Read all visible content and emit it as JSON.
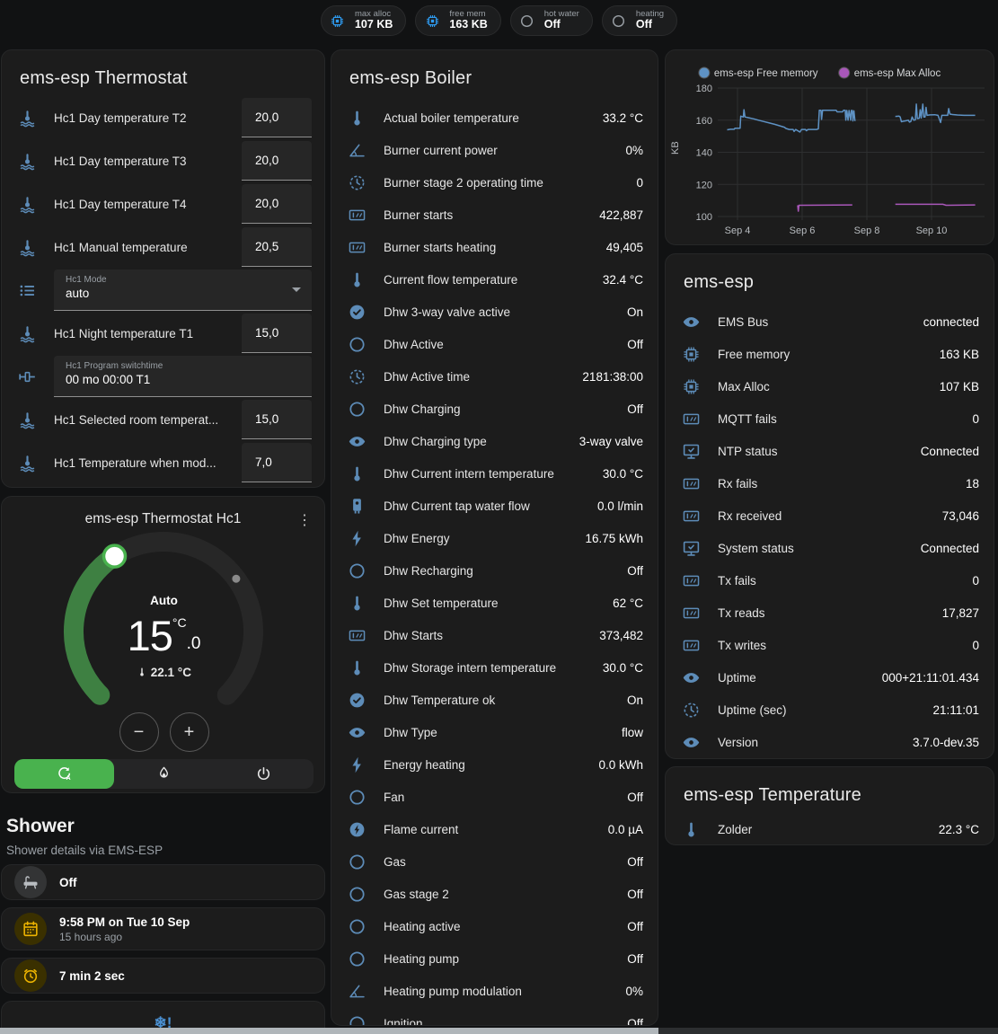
{
  "badges": [
    {
      "label": "max alloc",
      "value": "107 KB",
      "icon": "chip",
      "color": "blue"
    },
    {
      "label": "free mem",
      "value": "163 KB",
      "icon": "chip",
      "color": "blue"
    },
    {
      "label": "hot water",
      "value": "Off",
      "icon": "circle",
      "color": "gray"
    },
    {
      "label": "heating",
      "value": "Off",
      "icon": "circle",
      "color": "gray"
    }
  ],
  "thermostat_card": {
    "title": "ems-esp Thermostat",
    "rows": [
      {
        "type": "number",
        "icon": "thermometer-water",
        "label": "Hc1 Day temperature T2",
        "value": "20,0"
      },
      {
        "type": "number",
        "icon": "thermometer-water",
        "label": "Hc1 Day temperature T3",
        "value": "20,0"
      },
      {
        "type": "number",
        "icon": "thermometer-water",
        "label": "Hc1 Day temperature T4",
        "value": "20,0"
      },
      {
        "type": "number",
        "icon": "thermometer-water",
        "label": "Hc1 Manual temperature",
        "value": "20,5"
      },
      {
        "type": "select",
        "icon": "list",
        "label": "Hc1 Mode",
        "value": "auto"
      },
      {
        "type": "number",
        "icon": "thermometer-water",
        "label": "Hc1 Night temperature T1",
        "value": "15,0"
      },
      {
        "type": "text",
        "icon": "pipe",
        "label": "Hc1 Program switchtime",
        "value": "00 mo 00:00 T1"
      },
      {
        "type": "number",
        "icon": "thermometer-water",
        "label": "Hc1 Selected room temperat...",
        "value": "15,0"
      },
      {
        "type": "number",
        "icon": "thermometer-water",
        "label": "Hc1 Temperature when mod...",
        "value": "7,0"
      }
    ]
  },
  "dial_card": {
    "title": "ems-esp Thermostat Hc1",
    "mode": "Auto",
    "target_int": "15",
    "target_unit": "°C",
    "target_dec": ".0",
    "current": "22.1 °C"
  },
  "shower": {
    "title": "Shower",
    "subtitle": "Shower details via EMS-ESP",
    "cards": [
      {
        "icon": "bathtub",
        "color": "gray",
        "title": "Off",
        "subtitle": ""
      },
      {
        "icon": "calendar",
        "color": "yellow",
        "title": "9:58 PM on Tue 10 Sep",
        "subtitle": "15 hours ago"
      },
      {
        "icon": "timer",
        "color": "yellow",
        "title": "7 min 2 sec",
        "subtitle": ""
      },
      {
        "icon": "snowflake-alert",
        "color": "blue",
        "title": "",
        "subtitle": ""
      }
    ]
  },
  "boiler_card": {
    "title": "ems-esp Boiler",
    "rows": [
      {
        "icon": "thermometer",
        "label": "Actual boiler temperature",
        "value": "33.2 °C"
      },
      {
        "icon": "angle",
        "label": "Burner current power",
        "value": "0%"
      },
      {
        "icon": "clock",
        "label": "Burner stage 2 operating time",
        "value": "0"
      },
      {
        "icon": "counter",
        "label": "Burner starts",
        "value": "422,887"
      },
      {
        "icon": "counter",
        "label": "Burner starts heating",
        "value": "49,405"
      },
      {
        "icon": "thermometer",
        "label": "Current flow temperature",
        "value": "32.4 °C"
      },
      {
        "icon": "check-circle",
        "label": "Dhw 3-way valve active",
        "value": "On"
      },
      {
        "icon": "circle",
        "label": "Dhw Active",
        "value": "Off"
      },
      {
        "icon": "clock",
        "label": "Dhw Active time",
        "value": "2181:38:00"
      },
      {
        "icon": "circle",
        "label": "Dhw Charging",
        "value": "Off"
      },
      {
        "icon": "eye",
        "label": "Dhw Charging type",
        "value": "3-way valve"
      },
      {
        "icon": "thermometer",
        "label": "Dhw Current intern temperature",
        "value": "30.0 °C"
      },
      {
        "icon": "water-boiler",
        "label": "Dhw Current tap water flow",
        "value": "0.0 l/min"
      },
      {
        "icon": "flash",
        "label": "Dhw Energy",
        "value": "16.75 kWh"
      },
      {
        "icon": "circle",
        "label": "Dhw Recharging",
        "value": "Off"
      },
      {
        "icon": "thermometer",
        "label": "Dhw Set temperature",
        "value": "62 °C"
      },
      {
        "icon": "counter",
        "label": "Dhw Starts",
        "value": "373,482"
      },
      {
        "icon": "thermometer",
        "label": "Dhw Storage intern temperature",
        "value": "30.0 °C"
      },
      {
        "icon": "check-circle",
        "label": "Dhw Temperature ok",
        "value": "On"
      },
      {
        "icon": "eye",
        "label": "Dhw Type",
        "value": "flow"
      },
      {
        "icon": "flash",
        "label": "Energy heating",
        "value": "0.0 kWh"
      },
      {
        "icon": "circle",
        "label": "Fan",
        "value": "Off"
      },
      {
        "icon": "flash-circle",
        "label": "Flame current",
        "value": "0.0 µA"
      },
      {
        "icon": "circle",
        "label": "Gas",
        "value": "Off"
      },
      {
        "icon": "circle",
        "label": "Gas stage 2",
        "value": "Off"
      },
      {
        "icon": "circle",
        "label": "Heating active",
        "value": "Off"
      },
      {
        "icon": "circle",
        "label": "Heating pump",
        "value": "Off"
      },
      {
        "icon": "angle",
        "label": "Heating pump modulation",
        "value": "0%"
      },
      {
        "icon": "circle",
        "label": "Ignition",
        "value": "Off"
      }
    ]
  },
  "esp_card": {
    "title": "ems-esp",
    "rows": [
      {
        "icon": "eye",
        "label": "EMS Bus",
        "value": "connected"
      },
      {
        "icon": "chip",
        "label": "Free memory",
        "value": "163 KB"
      },
      {
        "icon": "chip",
        "label": "Max Alloc",
        "value": "107 KB"
      },
      {
        "icon": "counter",
        "label": "MQTT fails",
        "value": "0"
      },
      {
        "icon": "monitor-check",
        "label": "NTP status",
        "value": "Connected"
      },
      {
        "icon": "counter",
        "label": "Rx fails",
        "value": "18"
      },
      {
        "icon": "counter",
        "label": "Rx received",
        "value": "73,046"
      },
      {
        "icon": "monitor-check",
        "label": "System status",
        "value": "Connected"
      },
      {
        "icon": "counter",
        "label": "Tx fails",
        "value": "0"
      },
      {
        "icon": "counter",
        "label": "Tx reads",
        "value": "17,827"
      },
      {
        "icon": "counter",
        "label": "Tx writes",
        "value": "0"
      },
      {
        "icon": "eye",
        "label": "Uptime",
        "value": "000+21:11:01.434"
      },
      {
        "icon": "clock",
        "label": "Uptime (sec)",
        "value": "21:11:01"
      },
      {
        "icon": "eye",
        "label": "Version",
        "value": "3.7.0-dev.35"
      }
    ]
  },
  "temp_card": {
    "title": "ems-esp Temperature",
    "rows": [
      {
        "icon": "thermometer",
        "label": "Zolder",
        "value": "22.3 °C"
      }
    ]
  },
  "chart_data": {
    "type": "line",
    "title": "",
    "xlabel": "",
    "ylabel": "KB",
    "ylim": [
      100,
      180
    ],
    "yticks": [
      100,
      120,
      140,
      160,
      180
    ],
    "xlim": [
      3.5,
      11.5
    ],
    "xticks": [
      {
        "x": 4,
        "label": "Sep 4"
      },
      {
        "x": 6,
        "label": "Sep 6"
      },
      {
        "x": 8,
        "label": "Sep 8"
      },
      {
        "x": 10,
        "label": "Sep 10"
      }
    ],
    "grid": true,
    "legend_position": "top",
    "series": [
      {
        "name": "ems-esp Free memory",
        "color": "#5e92c4",
        "segments": [
          [
            [
              3.68,
              154
            ],
            [
              3.78,
              154.3
            ],
            [
              3.9,
              154.3
            ],
            [
              3.92,
              155
            ],
            [
              4.08,
              155
            ],
            [
              4.1,
              162.5
            ],
            [
              4.18,
              162
            ],
            [
              4.2,
              166.5
            ],
            [
              4.23,
              162
            ],
            [
              4.35,
              161.5
            ],
            [
              4.5,
              160.8
            ],
            [
              4.65,
              160
            ],
            [
              4.8,
              159.2
            ],
            [
              5.0,
              158.2
            ],
            [
              5.15,
              157.4
            ],
            [
              5.3,
              156.5
            ],
            [
              5.45,
              155.6
            ],
            [
              5.5,
              154.8
            ],
            [
              5.6,
              154.2
            ],
            [
              5.72,
              154.2
            ],
            [
              5.75,
              153
            ],
            [
              5.8,
              154.2
            ],
            [
              5.93,
              152.6
            ],
            [
              5.98,
              154.2
            ],
            [
              6.1,
              154.2
            ],
            [
              6.13,
              153.4
            ],
            [
              6.18,
              154.2
            ],
            [
              6.45,
              154.2
            ],
            [
              6.5,
              154.6
            ],
            [
              6.53,
              166.2
            ],
            [
              6.58,
              166.2
            ],
            [
              6.6,
              160.5
            ],
            [
              6.63,
              166.2
            ],
            [
              7.05,
              166.2
            ],
            [
              7.08,
              165.2
            ],
            [
              7.25,
              165.2
            ],
            [
              7.28,
              166.2
            ],
            [
              7.33,
              166.2
            ],
            [
              7.35,
              160
            ],
            [
              7.38,
              166
            ],
            [
              7.42,
              160
            ],
            [
              7.45,
              166
            ],
            [
              7.5,
              160
            ],
            [
              7.52,
              166
            ],
            [
              7.55,
              166
            ],
            [
              7.57,
              159.5
            ],
            [
              7.6,
              165.8
            ],
            [
              7.63,
              159.8
            ],
            [
              7.65,
              160
            ]
          ],
          [
            [
              8.88,
              162.3
            ],
            [
              9.0,
              162.5
            ],
            [
              9.03,
              162
            ],
            [
              9.07,
              159
            ],
            [
              9.12,
              159.3
            ],
            [
              9.2,
              159.6
            ],
            [
              9.28,
              160
            ],
            [
              9.32,
              158.8
            ],
            [
              9.36,
              159.2
            ],
            [
              9.4,
              162
            ],
            [
              9.45,
              160
            ],
            [
              9.5,
              160.2
            ],
            [
              9.53,
              170
            ],
            [
              9.56,
              161
            ],
            [
              9.62,
              161.2
            ],
            [
              9.65,
              166.5
            ],
            [
              9.68,
              161.3
            ],
            [
              9.73,
              170
            ],
            [
              9.76,
              162
            ],
            [
              9.8,
              162
            ],
            [
              9.83,
              168
            ],
            [
              9.86,
              163
            ],
            [
              9.95,
              163.3
            ],
            [
              10.1,
              163.4
            ],
            [
              10.2,
              163
            ],
            [
              10.28,
              158.5
            ],
            [
              10.32,
              163
            ],
            [
              10.5,
              163
            ],
            [
              10.53,
              167.2
            ],
            [
              10.57,
              163.8
            ],
            [
              10.65,
              163.5
            ],
            [
              10.8,
              163.2
            ],
            [
              11.0,
              163
            ],
            [
              11.35,
              163
            ]
          ]
        ]
      },
      {
        "name": "ems-esp Max Alloc",
        "color": "#a957b9",
        "segments": [
          [
            [
              5.86,
              107
            ],
            [
              5.88,
              103.3
            ],
            [
              5.9,
              107
            ],
            [
              7.55,
              107.2
            ]
          ],
          [
            [
              8.88,
              107.6
            ],
            [
              10.35,
              107.6
            ],
            [
              10.45,
              107
            ],
            [
              11.35,
              107.2
            ]
          ]
        ]
      }
    ]
  }
}
